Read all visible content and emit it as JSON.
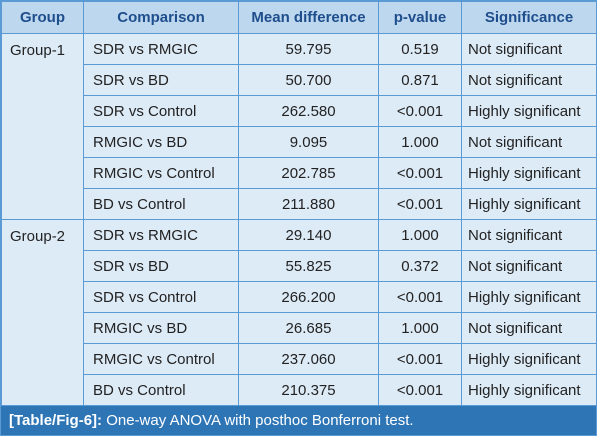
{
  "table": {
    "headers": [
      "Group",
      "Comparison",
      "Mean difference",
      "p-value",
      "Significance"
    ],
    "groups": [
      {
        "name": "Group-1",
        "rows": [
          {
            "comparison": "SDR vs RMGIC",
            "mean_difference": "59.795",
            "p_value": "0.519",
            "significance": "Not significant"
          },
          {
            "comparison": "SDR vs BD",
            "mean_difference": "50.700",
            "p_value": "0.871",
            "significance": "Not significant"
          },
          {
            "comparison": "SDR vs Control",
            "mean_difference": "262.580",
            "p_value": "<0.001",
            "significance": "Highly significant"
          },
          {
            "comparison": "RMGIC vs BD",
            "mean_difference": "9.095",
            "p_value": "1.000",
            "significance": "Not significant"
          },
          {
            "comparison": "RMGIC vs Control",
            "mean_difference": "202.785",
            "p_value": "<0.001",
            "significance": "Highly significant"
          },
          {
            "comparison": "BD vs Control",
            "mean_difference": "211.880",
            "p_value": "<0.001",
            "significance": "Highly significant"
          }
        ]
      },
      {
        "name": "Group-2",
        "rows": [
          {
            "comparison": "SDR vs RMGIC",
            "mean_difference": "29.140",
            "p_value": "1.000",
            "significance": "Not significant"
          },
          {
            "comparison": "SDR vs BD",
            "mean_difference": "55.825",
            "p_value": "0.372",
            "significance": "Not significant"
          },
          {
            "comparison": "SDR vs Control",
            "mean_difference": "266.200",
            "p_value": "<0.001",
            "significance": "Highly significant"
          },
          {
            "comparison": "RMGIC vs BD",
            "mean_difference": "26.685",
            "p_value": "1.000",
            "significance": "Not significant"
          },
          {
            "comparison": "RMGIC vs Control",
            "mean_difference": "237.060",
            "p_value": "<0.001",
            "significance": "Highly significant"
          },
          {
            "comparison": "BD vs Control",
            "mean_difference": "210.375",
            "p_value": "<0.001",
            "significance": "Highly significant"
          }
        ]
      }
    ]
  },
  "caption": {
    "label": "[Table/Fig-6]:",
    "text": " One-way ANOVA with posthoc Bonferroni test."
  },
  "colors": {
    "border": "#5b9bd5",
    "header_bg": "#bdd7ee",
    "header_text": "#1f4e8c",
    "body_bg": "#ddebf7",
    "caption_bg": "#2e75b6"
  }
}
